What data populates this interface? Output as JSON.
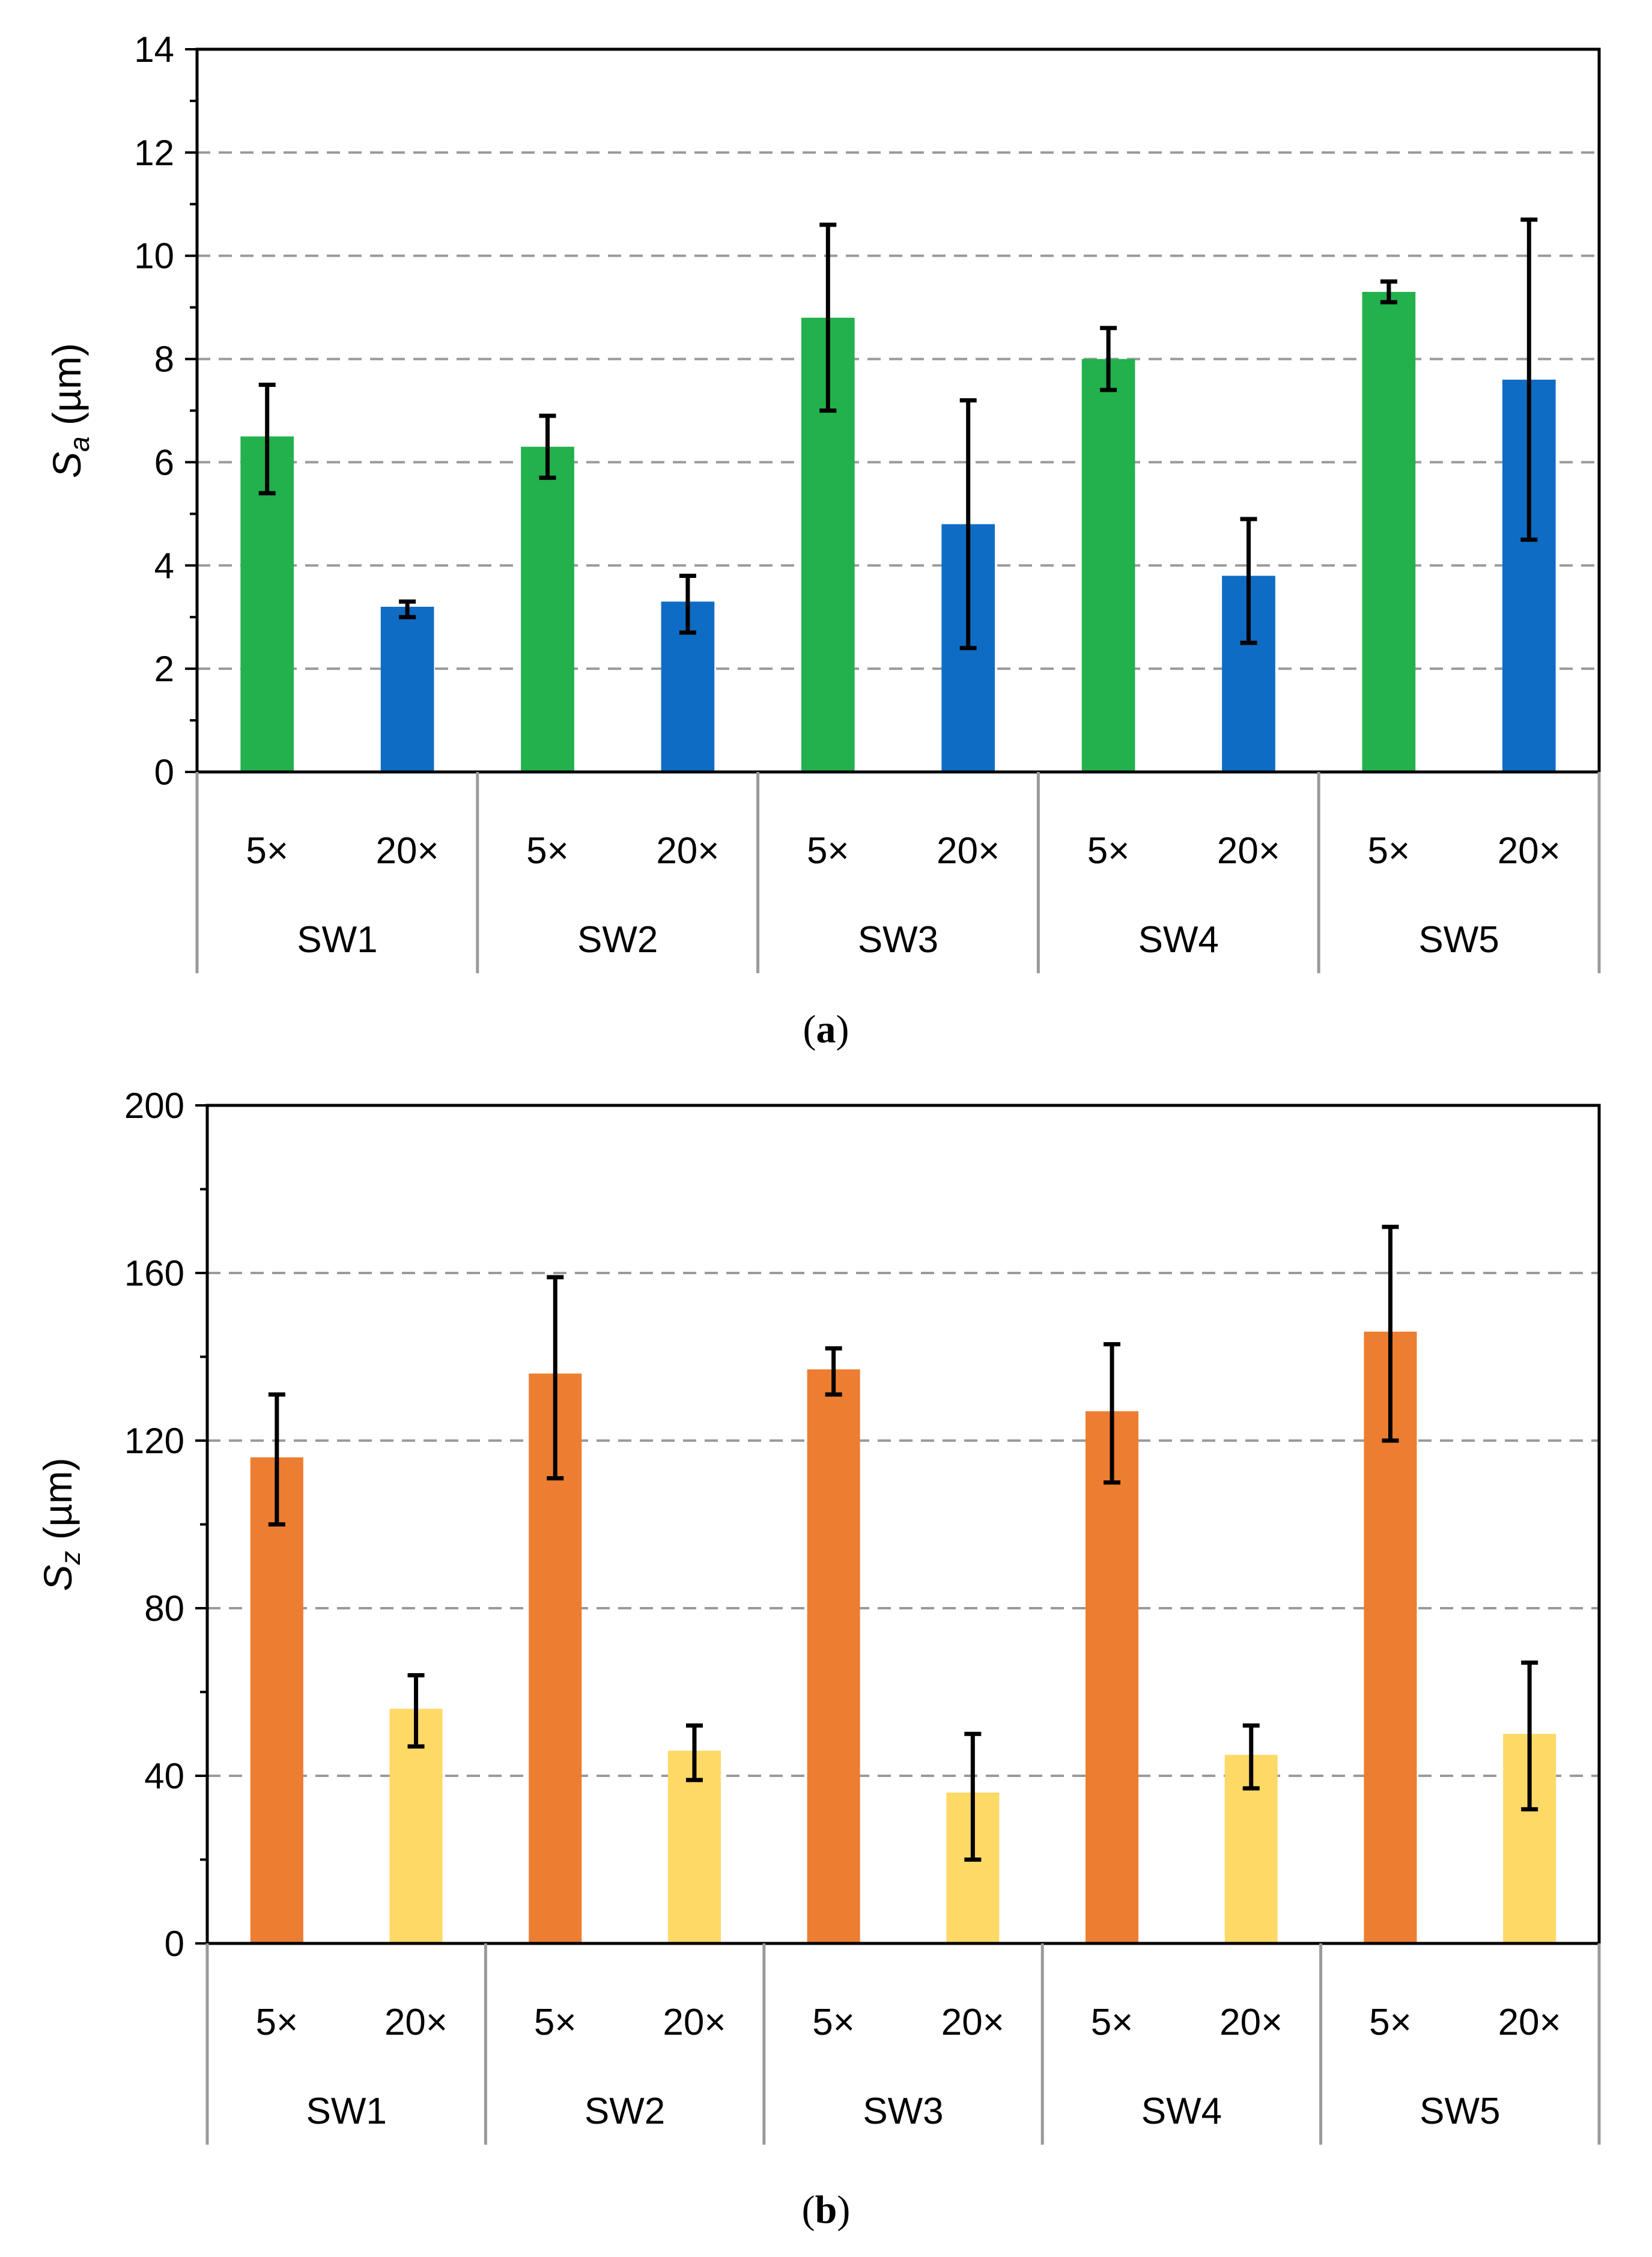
{
  "chart_data": [
    {
      "type": "bar",
      "caption_letter": "a",
      "ylabel": {
        "symbol": "S",
        "sub": "a",
        "unit": "(µm)"
      },
      "ylim": [
        0,
        14
      ],
      "ticks": [
        0,
        2,
        4,
        6,
        8,
        10,
        12,
        14
      ],
      "minor_step": 1,
      "grid": true,
      "groups": [
        "SW1",
        "SW2",
        "SW3",
        "SW4",
        "SW5"
      ],
      "subcategories": [
        "5×",
        "20×"
      ],
      "colors": [
        "#22b14c",
        "#0f6cc4"
      ],
      "series": [
        {
          "name": "5×",
          "values": [
            6.5,
            6.3,
            8.8,
            8.0,
            9.3
          ],
          "err_high": [
            7.5,
            6.9,
            10.6,
            8.6,
            9.5
          ],
          "err_low": [
            5.4,
            5.7,
            7.0,
            7.4,
            9.1
          ]
        },
        {
          "name": "20×",
          "values": [
            3.2,
            3.3,
            4.8,
            3.8,
            7.6
          ],
          "err_high": [
            3.3,
            3.8,
            7.2,
            4.9,
            10.7
          ],
          "err_low": [
            3.0,
            2.7,
            2.4,
            2.5,
            4.5
          ]
        }
      ]
    },
    {
      "type": "bar",
      "caption_letter": "b",
      "ylabel": {
        "symbol": "S",
        "sub": "z",
        "unit": "(µm)"
      },
      "ylim": [
        0,
        200
      ],
      "ticks": [
        0,
        40,
        80,
        120,
        160,
        200
      ],
      "minor_step": 20,
      "grid": true,
      "groups": [
        "SW1",
        "SW2",
        "SW3",
        "SW4",
        "SW5"
      ],
      "subcategories": [
        "5×",
        "20×"
      ],
      "colors": [
        "#ed7d31",
        "#ffd966"
      ],
      "series": [
        {
          "name": "5×",
          "values": [
            116,
            136,
            137,
            127,
            146
          ],
          "err_high": [
            131,
            159,
            142,
            143,
            171
          ],
          "err_low": [
            100,
            111,
            131,
            110,
            120
          ]
        },
        {
          "name": "20×",
          "values": [
            56,
            46,
            36,
            45,
            50
          ],
          "err_high": [
            64,
            52,
            50,
            52,
            67
          ],
          "err_low": [
            47,
            39,
            20,
            37,
            32
          ]
        }
      ]
    }
  ]
}
